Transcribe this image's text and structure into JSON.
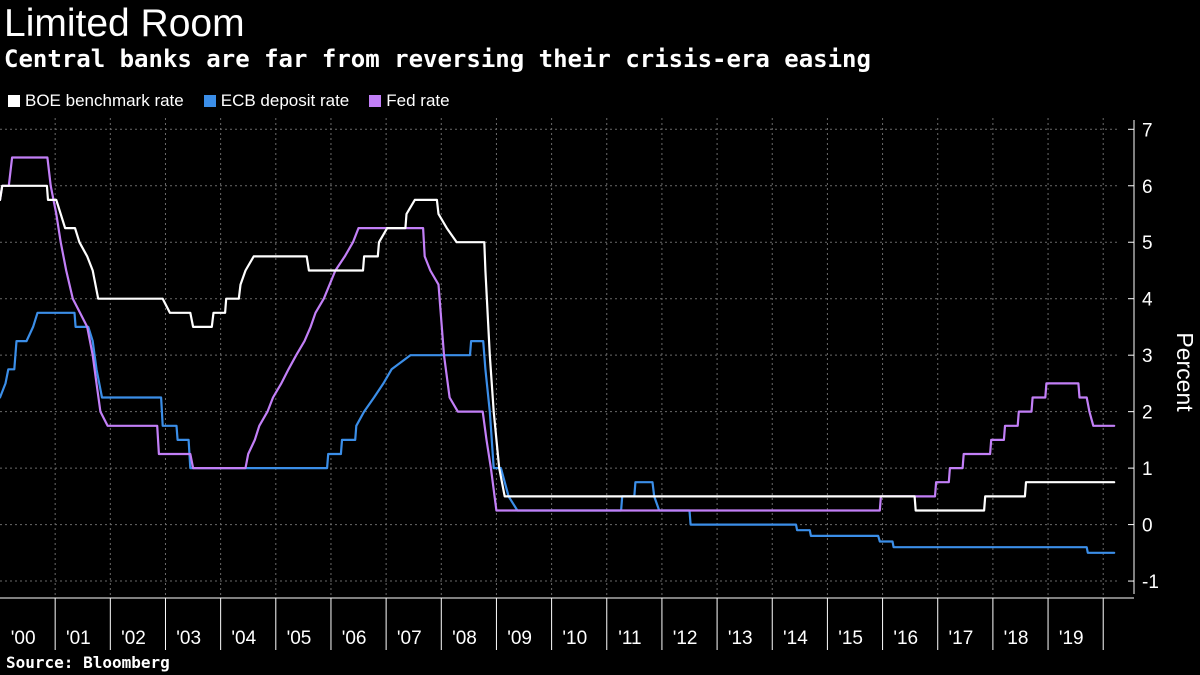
{
  "title": "Limited Room",
  "subtitle": "Central banks are far from reversing their crisis-era easing",
  "source": "Source: Bloomberg",
  "colors": {
    "background": "#000000",
    "text": "#ffffff",
    "grid": "#6a6a6a",
    "boe": "#ffffff",
    "ecb": "#3b8ee8",
    "fed": "#c27ff7"
  },
  "chart_data": {
    "type": "line",
    "title": "Limited Room",
    "subtitle": "Central banks are far from reversing their crisis-era easing",
    "xlabel": "",
    "ylabel": "Percent",
    "ylim": [
      -1.3,
      7.2
    ],
    "xlim": [
      2000.0,
      2020.25
    ],
    "y_ticks": [
      7,
      6,
      5,
      4,
      3,
      2,
      1,
      0,
      -1
    ],
    "x_tick_labels": [
      "'00",
      "'01",
      "'02",
      "'03",
      "'04",
      "'05",
      "'06",
      "'07",
      "'08",
      "'09",
      "'10",
      "'11",
      "'12",
      "'13",
      "'14",
      "'15",
      "'16",
      "'17",
      "'18",
      "'19"
    ],
    "x_tick_years": [
      2000,
      2001,
      2002,
      2003,
      2004,
      2005,
      2006,
      2007,
      2008,
      2009,
      2010,
      2011,
      2012,
      2013,
      2014,
      2015,
      2016,
      2017,
      2018,
      2019
    ],
    "grid": true,
    "legend_position": "top-left",
    "series": [
      {
        "name": "BOE benchmark rate",
        "color": "#ffffff",
        "points": [
          [
            2000.0,
            5.75
          ],
          [
            2000.04,
            6.0
          ],
          [
            2000.85,
            6.0
          ],
          [
            2000.87,
            5.75
          ],
          [
            2001.02,
            5.75
          ],
          [
            2001.1,
            5.5
          ],
          [
            2001.18,
            5.25
          ],
          [
            2001.36,
            5.25
          ],
          [
            2001.44,
            5.0
          ],
          [
            2001.58,
            4.75
          ],
          [
            2001.68,
            4.5
          ],
          [
            2001.78,
            4.0
          ],
          [
            2001.88,
            4.0
          ],
          [
            2002.95,
            4.0
          ],
          [
            2003.08,
            3.75
          ],
          [
            2003.45,
            3.75
          ],
          [
            2003.5,
            3.5
          ],
          [
            2003.84,
            3.5
          ],
          [
            2003.87,
            3.75
          ],
          [
            2004.08,
            3.75
          ],
          [
            2004.1,
            4.0
          ],
          [
            2004.33,
            4.0
          ],
          [
            2004.36,
            4.25
          ],
          [
            2004.45,
            4.5
          ],
          [
            2004.6,
            4.75
          ],
          [
            2005.56,
            4.75
          ],
          [
            2005.6,
            4.5
          ],
          [
            2006.58,
            4.5
          ],
          [
            2006.6,
            4.75
          ],
          [
            2006.85,
            4.75
          ],
          [
            2006.87,
            5.0
          ],
          [
            2007.02,
            5.25
          ],
          [
            2007.35,
            5.25
          ],
          [
            2007.37,
            5.5
          ],
          [
            2007.52,
            5.75
          ],
          [
            2007.92,
            5.75
          ],
          [
            2007.95,
            5.5
          ],
          [
            2008.1,
            5.25
          ],
          [
            2008.28,
            5.0
          ],
          [
            2008.78,
            5.0
          ],
          [
            2008.8,
            4.5
          ],
          [
            2008.88,
            3.0
          ],
          [
            2008.95,
            2.0
          ],
          [
            2009.05,
            1.0
          ],
          [
            2009.15,
            0.5
          ],
          [
            2016.58,
            0.5
          ],
          [
            2016.6,
            0.25
          ],
          [
            2017.84,
            0.25
          ],
          [
            2017.86,
            0.5
          ],
          [
            2018.58,
            0.5
          ],
          [
            2018.6,
            0.75
          ],
          [
            2020.2,
            0.75
          ]
        ]
      },
      {
        "name": "ECB deposit rate",
        "color": "#3b8ee8",
        "points": [
          [
            2000.0,
            2.25
          ],
          [
            2000.1,
            2.5
          ],
          [
            2000.15,
            2.75
          ],
          [
            2000.26,
            2.75
          ],
          [
            2000.3,
            3.25
          ],
          [
            2000.48,
            3.25
          ],
          [
            2000.6,
            3.5
          ],
          [
            2000.68,
            3.75
          ],
          [
            2001.35,
            3.75
          ],
          [
            2001.37,
            3.5
          ],
          [
            2001.6,
            3.5
          ],
          [
            2001.68,
            3.25
          ],
          [
            2001.75,
            2.75
          ],
          [
            2001.85,
            2.25
          ],
          [
            2002.92,
            2.25
          ],
          [
            2002.95,
            1.75
          ],
          [
            2003.2,
            1.75
          ],
          [
            2003.22,
            1.5
          ],
          [
            2003.42,
            1.5
          ],
          [
            2003.45,
            1.0
          ],
          [
            2005.93,
            1.0
          ],
          [
            2005.95,
            1.25
          ],
          [
            2006.18,
            1.25
          ],
          [
            2006.2,
            1.5
          ],
          [
            2006.44,
            1.5
          ],
          [
            2006.46,
            1.75
          ],
          [
            2006.6,
            2.0
          ],
          [
            2006.78,
            2.25
          ],
          [
            2006.95,
            2.5
          ],
          [
            2007.1,
            2.75
          ],
          [
            2007.44,
            3.0
          ],
          [
            2008.52,
            3.0
          ],
          [
            2008.54,
            3.25
          ],
          [
            2008.76,
            3.25
          ],
          [
            2008.8,
            2.75
          ],
          [
            2008.88,
            2.0
          ],
          [
            2008.95,
            1.0
          ],
          [
            2009.08,
            1.0
          ],
          [
            2009.22,
            0.5
          ],
          [
            2009.38,
            0.25
          ],
          [
            2011.26,
            0.25
          ],
          [
            2011.28,
            0.5
          ],
          [
            2011.5,
            0.5
          ],
          [
            2011.52,
            0.75
          ],
          [
            2011.83,
            0.75
          ],
          [
            2011.86,
            0.5
          ],
          [
            2011.95,
            0.25
          ],
          [
            2012.5,
            0.25
          ],
          [
            2012.52,
            0.0
          ],
          [
            2014.43,
            0.0
          ],
          [
            2014.45,
            -0.1
          ],
          [
            2014.68,
            -0.1
          ],
          [
            2014.7,
            -0.2
          ],
          [
            2015.92,
            -0.2
          ],
          [
            2015.95,
            -0.3
          ],
          [
            2016.18,
            -0.3
          ],
          [
            2016.2,
            -0.4
          ],
          [
            2019.7,
            -0.4
          ],
          [
            2019.72,
            -0.5
          ],
          [
            2020.2,
            -0.5
          ]
        ]
      },
      {
        "name": "Fed rate",
        "color": "#c27ff7",
        "points": [
          [
            2000.0,
            5.75
          ],
          [
            2000.04,
            6.0
          ],
          [
            2000.16,
            6.0
          ],
          [
            2000.22,
            6.5
          ],
          [
            2000.86,
            6.5
          ],
          [
            2000.92,
            6.0
          ],
          [
            2001.02,
            5.5
          ],
          [
            2001.1,
            5.0
          ],
          [
            2001.2,
            4.5
          ],
          [
            2001.32,
            4.0
          ],
          [
            2001.45,
            3.75
          ],
          [
            2001.58,
            3.5
          ],
          [
            2001.68,
            3.0
          ],
          [
            2001.75,
            2.5
          ],
          [
            2001.82,
            2.0
          ],
          [
            2001.95,
            1.75
          ],
          [
            2002.85,
            1.75
          ],
          [
            2002.88,
            1.25
          ],
          [
            2003.45,
            1.25
          ],
          [
            2003.5,
            1.0
          ],
          [
            2004.45,
            1.0
          ],
          [
            2004.5,
            1.25
          ],
          [
            2004.62,
            1.5
          ],
          [
            2004.7,
            1.75
          ],
          [
            2004.85,
            2.0
          ],
          [
            2004.95,
            2.25
          ],
          [
            2005.1,
            2.5
          ],
          [
            2005.23,
            2.75
          ],
          [
            2005.37,
            3.0
          ],
          [
            2005.52,
            3.25
          ],
          [
            2005.63,
            3.5
          ],
          [
            2005.72,
            3.75
          ],
          [
            2005.87,
            4.0
          ],
          [
            2006.08,
            4.5
          ],
          [
            2006.25,
            4.75
          ],
          [
            2006.4,
            5.0
          ],
          [
            2006.5,
            5.25
          ],
          [
            2007.67,
            5.25
          ],
          [
            2007.7,
            4.75
          ],
          [
            2007.8,
            4.5
          ],
          [
            2007.95,
            4.25
          ],
          [
            2008.05,
            3.0
          ],
          [
            2008.15,
            2.25
          ],
          [
            2008.3,
            2.0
          ],
          [
            2008.75,
            2.0
          ],
          [
            2008.82,
            1.5
          ],
          [
            2008.9,
            1.0
          ],
          [
            2009.0,
            0.25
          ],
          [
            2015.95,
            0.25
          ],
          [
            2015.97,
            0.5
          ],
          [
            2016.95,
            0.5
          ],
          [
            2016.97,
            0.75
          ],
          [
            2017.2,
            0.75
          ],
          [
            2017.22,
            1.0
          ],
          [
            2017.45,
            1.0
          ],
          [
            2017.47,
            1.25
          ],
          [
            2017.95,
            1.25
          ],
          [
            2017.97,
            1.5
          ],
          [
            2018.2,
            1.5
          ],
          [
            2018.22,
            1.75
          ],
          [
            2018.45,
            1.75
          ],
          [
            2018.47,
            2.0
          ],
          [
            2018.7,
            2.0
          ],
          [
            2018.72,
            2.25
          ],
          [
            2018.95,
            2.25
          ],
          [
            2018.97,
            2.5
          ],
          [
            2019.55,
            2.5
          ],
          [
            2019.57,
            2.25
          ],
          [
            2019.7,
            2.25
          ],
          [
            2019.75,
            2.0
          ],
          [
            2019.82,
            1.75
          ],
          [
            2020.2,
            1.75
          ]
        ]
      }
    ]
  }
}
